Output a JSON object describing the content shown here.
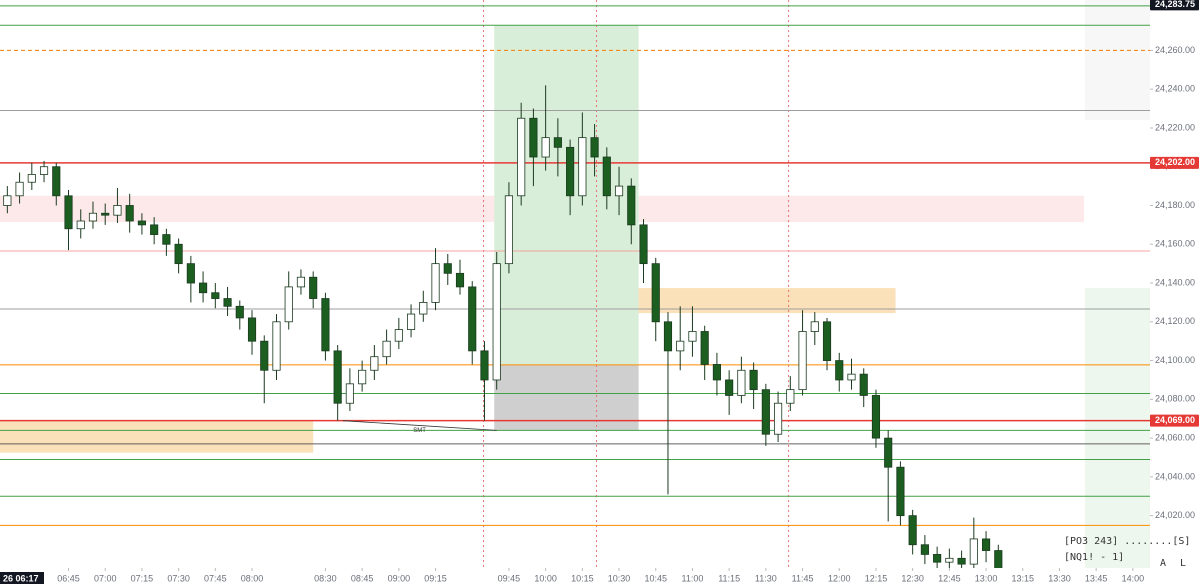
{
  "chart_data": {
    "type": "candlestick",
    "xlim": [
      377,
      847
    ],
    "ylim": [
      23993,
      24286
    ],
    "xticks": [
      {
        "value": 405,
        "label": "06:45"
      },
      {
        "value": 420,
        "label": "07:00"
      },
      {
        "value": 435,
        "label": "07:15"
      },
      {
        "value": 450,
        "label": "07:30"
      },
      {
        "value": 465,
        "label": "07:45"
      },
      {
        "value": 480,
        "label": "08:00"
      },
      {
        "value": 510,
        "label": "08:30"
      },
      {
        "value": 525,
        "label": "08:45"
      },
      {
        "value": 540,
        "label": "09:00"
      },
      {
        "value": 555,
        "label": "09:15"
      },
      {
        "value": 585,
        "label": "09:45"
      },
      {
        "value": 600,
        "label": "10:00"
      },
      {
        "value": 615,
        "label": "10:15"
      },
      {
        "value": 630,
        "label": "10:30"
      },
      {
        "value": 645,
        "label": "10:45"
      },
      {
        "value": 660,
        "label": "11:00"
      },
      {
        "value": 675,
        "label": "11:15"
      },
      {
        "value": 690,
        "label": "11:30"
      },
      {
        "value": 705,
        "label": "11:45"
      },
      {
        "value": 720,
        "label": "12:00"
      },
      {
        "value": 735,
        "label": "12:15"
      },
      {
        "value": 750,
        "label": "12:30"
      },
      {
        "value": 765,
        "label": "12:45"
      },
      {
        "value": 780,
        "label": "13:00"
      },
      {
        "value": 795,
        "label": "13:15"
      },
      {
        "value": 810,
        "label": "13:30"
      },
      {
        "value": 825,
        "label": "13:45"
      },
      {
        "value": 840,
        "label": "14:00"
      }
    ],
    "yticks": [
      {
        "value": 24020,
        "label": "24,020.00"
      },
      {
        "value": 24040,
        "label": "24,040.00"
      },
      {
        "value": 24060,
        "label": "24,060.00"
      },
      {
        "value": 24080,
        "label": "24,080.00"
      },
      {
        "value": 24100,
        "label": "24,100.00"
      },
      {
        "value": 24120,
        "label": "24,120.00"
      },
      {
        "value": 24140,
        "label": "24,140.00"
      },
      {
        "value": 24160,
        "label": "24,160.00"
      },
      {
        "value": 24180,
        "label": "24,180.00"
      },
      {
        "value": 24200,
        "label": "24,200.00"
      },
      {
        "value": 24220,
        "label": "24,220.00"
      },
      {
        "value": 24240,
        "label": "24,240.00"
      },
      {
        "value": 24260,
        "label": "24,260.00"
      }
    ],
    "up_color": "#ffffff",
    "down_color": "#1b5e20",
    "outline_color": "#1b3a1f",
    "x": [
      380,
      385,
      390,
      395,
      400,
      405,
      410,
      415,
      420,
      425,
      430,
      435,
      440,
      445,
      450,
      455,
      460,
      465,
      470,
      475,
      480,
      485,
      490,
      495,
      500,
      505,
      510,
      515,
      520,
      525,
      530,
      535,
      540,
      545,
      550,
      555,
      560,
      565,
      570,
      575,
      580,
      585,
      590,
      595,
      600,
      605,
      610,
      615,
      620,
      625,
      630,
      635,
      640,
      645,
      650,
      655,
      660,
      665,
      670,
      675,
      680,
      685,
      690,
      695,
      700,
      705,
      710,
      715,
      720,
      725,
      730,
      735,
      740,
      745,
      750,
      755,
      760,
      765,
      770,
      775,
      780,
      785
    ],
    "open": [
      24180,
      24185,
      24192,
      24196,
      24200,
      24185,
      24168,
      24172,
      24176,
      24175,
      24180,
      24172,
      24170,
      24165,
      24160,
      24150,
      24140,
      24135,
      24132,
      24128,
      24122,
      24110,
      24095,
      24120,
      24138,
      24143,
      24132,
      24105,
      24078,
      24088,
      24095,
      24102,
      24110,
      24116,
      24124,
      24130,
      24150,
      24145,
      24138,
      24105,
      24090,
      24150,
      24185,
      24225,
      24205,
      24215,
      24210,
      24185,
      24215,
      24205,
      24185,
      24190,
      24170,
      24150,
      24120,
      24105,
      24110,
      24115,
      24098,
      24090,
      24082,
      24095,
      24085,
      24062,
      24078,
      24085,
      24115,
      24120,
      24100,
      24090,
      24093,
      24082,
      24060,
      24045,
      24020,
      24005,
      24000,
      23996,
      23998,
      23995,
      24008,
      24002
    ],
    "high": [
      24190,
      24197,
      24202,
      24203,
      24202,
      24188,
      24178,
      24182,
      24181,
      24189,
      24186,
      24176,
      24174,
      24168,
      24163,
      24154,
      24146,
      24140,
      24138,
      24131,
      24126,
      24113,
      24124,
      24146,
      24147,
      24146,
      24135,
      24108,
      24096,
      24100,
      24108,
      24116,
      24122,
      24129,
      24136,
      24158,
      24155,
      24152,
      24141,
      24110,
      24156,
      24192,
      24233,
      24230,
      24242,
      24225,
      24214,
      24228,
      24222,
      24210,
      24200,
      24194,
      24173,
      24153,
      24125,
      24128,
      24128,
      24118,
      24104,
      24095,
      24102,
      24099,
      24088,
      24084,
      24092,
      24126,
      24125,
      24122,
      24104,
      24101,
      24096,
      24085,
      24064,
      24048,
      24023,
      24010,
      24004,
      24003,
      24002,
      24019,
      24012,
      24005
    ],
    "low": [
      24176,
      24181,
      24188,
      24192,
      24180,
      24157,
      24163,
      24168,
      24170,
      24171,
      24166,
      24165,
      24160,
      24154,
      24145,
      24130,
      24130,
      24127,
      24123,
      24116,
      24103,
      24078,
      24090,
      24116,
      24134,
      24127,
      24100,
      24069,
      24074,
      24084,
      24090,
      24098,
      24106,
      24112,
      24120,
      24126,
      24139,
      24134,
      24098,
      24069,
      24085,
      24145,
      24180,
      24190,
      24198,
      24195,
      24175,
      24180,
      24195,
      24178,
      24175,
      24160,
      24140,
      24110,
      24031,
      24095,
      24102,
      24090,
      24082,
      24072,
      24078,
      24075,
      24056,
      24058,
      24074,
      24082,
      24108,
      24095,
      24084,
      24085,
      24076,
      24055,
      24017,
      24015,
      24000,
      23995,
      23992,
      23992,
      23990,
      23992,
      23996,
      23987
    ],
    "close": [
      24185,
      24192,
      24196,
      24200,
      24185,
      24168,
      24172,
      24176,
      24175,
      24180,
      24172,
      24170,
      24165,
      24160,
      24150,
      24140,
      24135,
      24132,
      24128,
      24122,
      24110,
      24095,
      24120,
      24138,
      24143,
      24132,
      24105,
      24078,
      24088,
      24095,
      24102,
      24110,
      24116,
      24124,
      24130,
      24150,
      24145,
      24138,
      24105,
      24090,
      24150,
      24185,
      24225,
      24205,
      24215,
      24210,
      24185,
      24215,
      24205,
      24185,
      24190,
      24170,
      24150,
      24120,
      24105,
      24110,
      24115,
      24098,
      24090,
      24082,
      24095,
      24085,
      24062,
      24078,
      24085,
      24115,
      24120,
      24100,
      24090,
      24093,
      24082,
      24060,
      24045,
      24020,
      24005,
      24000,
      23996,
      23998,
      23995,
      24008,
      24002,
      23990
    ],
    "levels": [
      {
        "value": 24283,
        "color": "#43a047"
      },
      {
        "value": 24273,
        "color": "#43a047"
      },
      {
        "value": 24260,
        "color": "#f57c00",
        "dashed": true
      },
      {
        "value": 24229,
        "color": "#9e9e9e"
      },
      {
        "value": 24202,
        "color": "#e53935"
      },
      {
        "value": 24156.5,
        "color": "#f4a0a0"
      },
      {
        "value": 24126.6,
        "color": "#9e9e9e"
      },
      {
        "value": 24097.8,
        "color": "#fb8c00"
      },
      {
        "value": 24083,
        "color": "#43a047"
      },
      {
        "value": 24069,
        "color": "#e53935"
      },
      {
        "value": 24064,
        "color": "#43a047"
      },
      {
        "value": 24057,
        "color": "#616161"
      },
      {
        "value": 24049,
        "color": "#43a047"
      },
      {
        "value": 24030,
        "color": "#43a047"
      },
      {
        "value": 24015,
        "color": "#fb8c00"
      }
    ],
    "zones": [
      {
        "from": 24171.4,
        "to": 24185,
        "x0": 377,
        "x1": 820,
        "color": "#fde4e4"
      },
      {
        "from": 24052.5,
        "to": 24069,
        "x0": 377,
        "x1": 505,
        "color": "#f9d9a8"
      },
      {
        "from": 24124.5,
        "to": 24137.4,
        "x0": 580,
        "x1": 743,
        "color": "#f9d9a8"
      }
    ],
    "position": {
      "x0": 579,
      "x1": 638,
      "target": 24273,
      "entry": 24098,
      "stop": 24064
    },
    "vlines": [
      574.6,
      620.8,
      699.3
    ],
    "annotation": "SMT",
    "smt_line": {
      "x0": 517,
      "y0": 24069,
      "x1": 580,
      "y1": 24064
    },
    "price_labels": [
      {
        "value": 24283.75,
        "label": "24,283.75",
        "color": "#131722"
      },
      {
        "value": 24202,
        "label": "24,202.00",
        "color": "#e53935"
      },
      {
        "value": 24069,
        "label": "24,069.00",
        "color": "#e53935"
      }
    ],
    "crosshair_time": {
      "value": 377,
      "label": "26  06:17"
    },
    "panel_text": [
      "[PO3 243] ........[S]",
      "[NQ1! - 1]"
    ],
    "buttons": [
      "A",
      "L"
    ]
  }
}
